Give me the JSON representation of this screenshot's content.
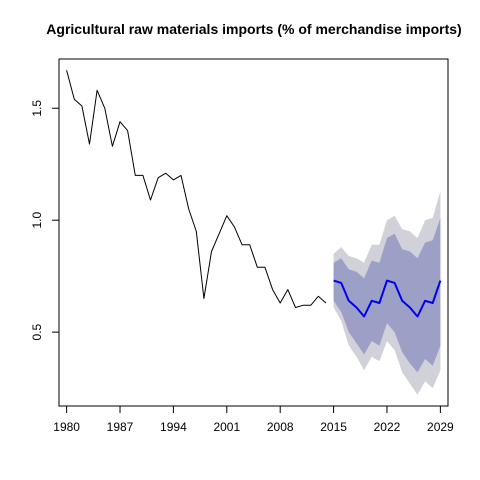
{
  "chart_data": {
    "type": "line",
    "title": "Agricultural raw materials imports (% of merchandise imports)",
    "xlabel": "",
    "ylabel": "",
    "xlim": [
      1979,
      2030
    ],
    "ylim": [
      0.17,
      1.72
    ],
    "x_ticks": [
      1980,
      1987,
      1994,
      2001,
      2008,
      2015,
      2022,
      2029
    ],
    "y_ticks": [
      0.5,
      1.0,
      1.5
    ],
    "y_tick_labels": [
      "0.5",
      "1.0",
      "1.5"
    ],
    "grid": false,
    "legend": "none",
    "series": [
      {
        "kind": "history",
        "color": "#000000",
        "x": [
          1980,
          1981,
          1982,
          1983,
          1984,
          1985,
          1986,
          1987,
          1988,
          1989,
          1990,
          1991,
          1992,
          1993,
          1994,
          1995,
          1996,
          1997,
          1998,
          1999,
          2000,
          2001,
          2002,
          2003,
          2004,
          2005,
          2006,
          2007,
          2008,
          2009,
          2010,
          2011,
          2012,
          2013,
          2014
        ],
        "y": [
          1.67,
          1.54,
          1.51,
          1.34,
          1.58,
          1.5,
          1.33,
          1.44,
          1.4,
          1.2,
          1.2,
          1.09,
          1.19,
          1.21,
          1.18,
          1.2,
          1.05,
          0.95,
          0.65,
          0.86,
          0.94,
          1.02,
          0.97,
          0.89,
          0.89,
          0.79,
          0.79,
          0.69,
          0.63,
          0.69,
          0.61,
          0.62,
          0.62,
          0.66,
          0.63
        ]
      },
      {
        "kind": "forecast_mean",
        "color": "#0000ee",
        "x": [
          2015,
          2016,
          2017,
          2018,
          2019,
          2020,
          2021,
          2022,
          2023,
          2024,
          2025,
          2026,
          2027,
          2028,
          2029
        ],
        "y": [
          0.73,
          0.72,
          0.64,
          0.61,
          0.57,
          0.64,
          0.63,
          0.73,
          0.72,
          0.64,
          0.61,
          0.57,
          0.64,
          0.63,
          0.73
        ]
      }
    ],
    "bands": [
      {
        "name": "",
        "color": "#d1d1d9",
        "x": [
          2015,
          2016,
          2017,
          2018,
          2019,
          2020,
          2021,
          2022,
          2023,
          2024,
          2025,
          2026,
          2027,
          2028,
          2029
        ],
        "lower": [
          0.61,
          0.55,
          0.44,
          0.39,
          0.33,
          0.39,
          0.37,
          0.46,
          0.42,
          0.32,
          0.27,
          0.22,
          0.28,
          0.25,
          0.33
        ],
        "upper": [
          0.85,
          0.88,
          0.84,
          0.83,
          0.81,
          0.89,
          0.89,
          1.0,
          1.02,
          0.96,
          0.95,
          0.92,
          1.0,
          1.01,
          1.13
        ]
      },
      {
        "name": "",
        "color": "#9da0c6",
        "x": [
          2015,
          2016,
          2017,
          2018,
          2019,
          2020,
          2021,
          2022,
          2023,
          2024,
          2025,
          2026,
          2027,
          2028,
          2029
        ],
        "lower": [
          0.64,
          0.59,
          0.5,
          0.45,
          0.4,
          0.46,
          0.44,
          0.54,
          0.5,
          0.41,
          0.36,
          0.32,
          0.38,
          0.35,
          0.44
        ],
        "upper": [
          0.81,
          0.83,
          0.78,
          0.77,
          0.74,
          0.82,
          0.81,
          0.92,
          0.94,
          0.87,
          0.86,
          0.83,
          0.9,
          0.91,
          1.01
        ]
      }
    ]
  }
}
